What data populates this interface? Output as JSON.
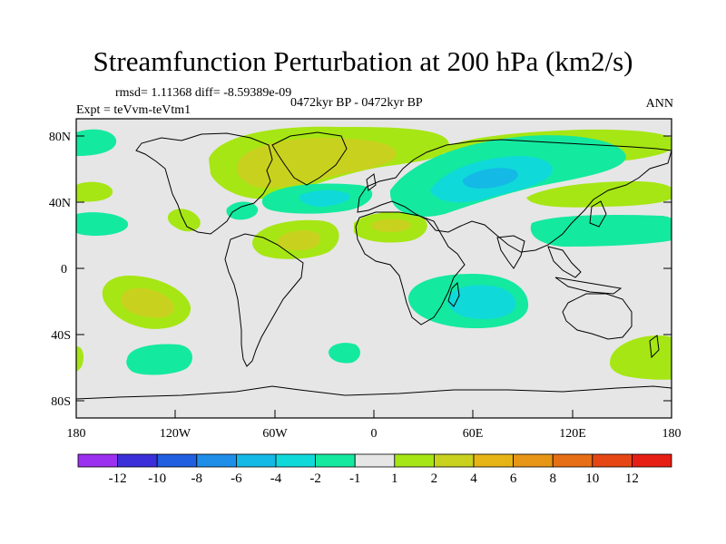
{
  "title": "Streamfunction Perturbation at 200 hPa (km2/s)",
  "stats_line": "rmsd= 1.11368 diff= -8.59389e-09",
  "subtitle": "0472kyr BP - 0472kyr BP",
  "experiment": "Expt = teVvm-teVtm1",
  "season": "ANN",
  "map": {
    "projection": "cylindrical equidistant",
    "lon_range": [
      -180,
      180
    ],
    "lat_range": [
      -90,
      90
    ],
    "background_color": "#e6e6e6",
    "coastline_color": "#000000",
    "lat_tick_labels": [
      "80N",
      "40N",
      "0",
      "40S",
      "80S"
    ],
    "lon_tick_labels": [
      "180",
      "120W",
      "60W",
      "0",
      "60E",
      "120E",
      "180"
    ]
  },
  "colorbar": {
    "colors": [
      "#9b30f0",
      "#3a2fd8",
      "#1f5fe0",
      "#1e8ee8",
      "#14b9e6",
      "#10d9d9",
      "#14e9a0",
      "#e6e6e6",
      "#a6e614",
      "#c8d21e",
      "#e6b414",
      "#e69614",
      "#e66e14",
      "#e64614",
      "#e61e14"
    ],
    "labels": [
      "-12",
      "-10",
      "-8",
      "-6",
      "-4",
      "-2",
      "-1",
      "1",
      "2",
      "4",
      "6",
      "8",
      "10",
      "12"
    ]
  },
  "contour_fill_colors": {
    "neg1": "#14e9a0",
    "neg2": "#10d9d9",
    "neg4": "#14b9e6",
    "pos1": "#a6e614",
    "pos2": "#c8d21e",
    "pos4": "#e6b414"
  }
}
